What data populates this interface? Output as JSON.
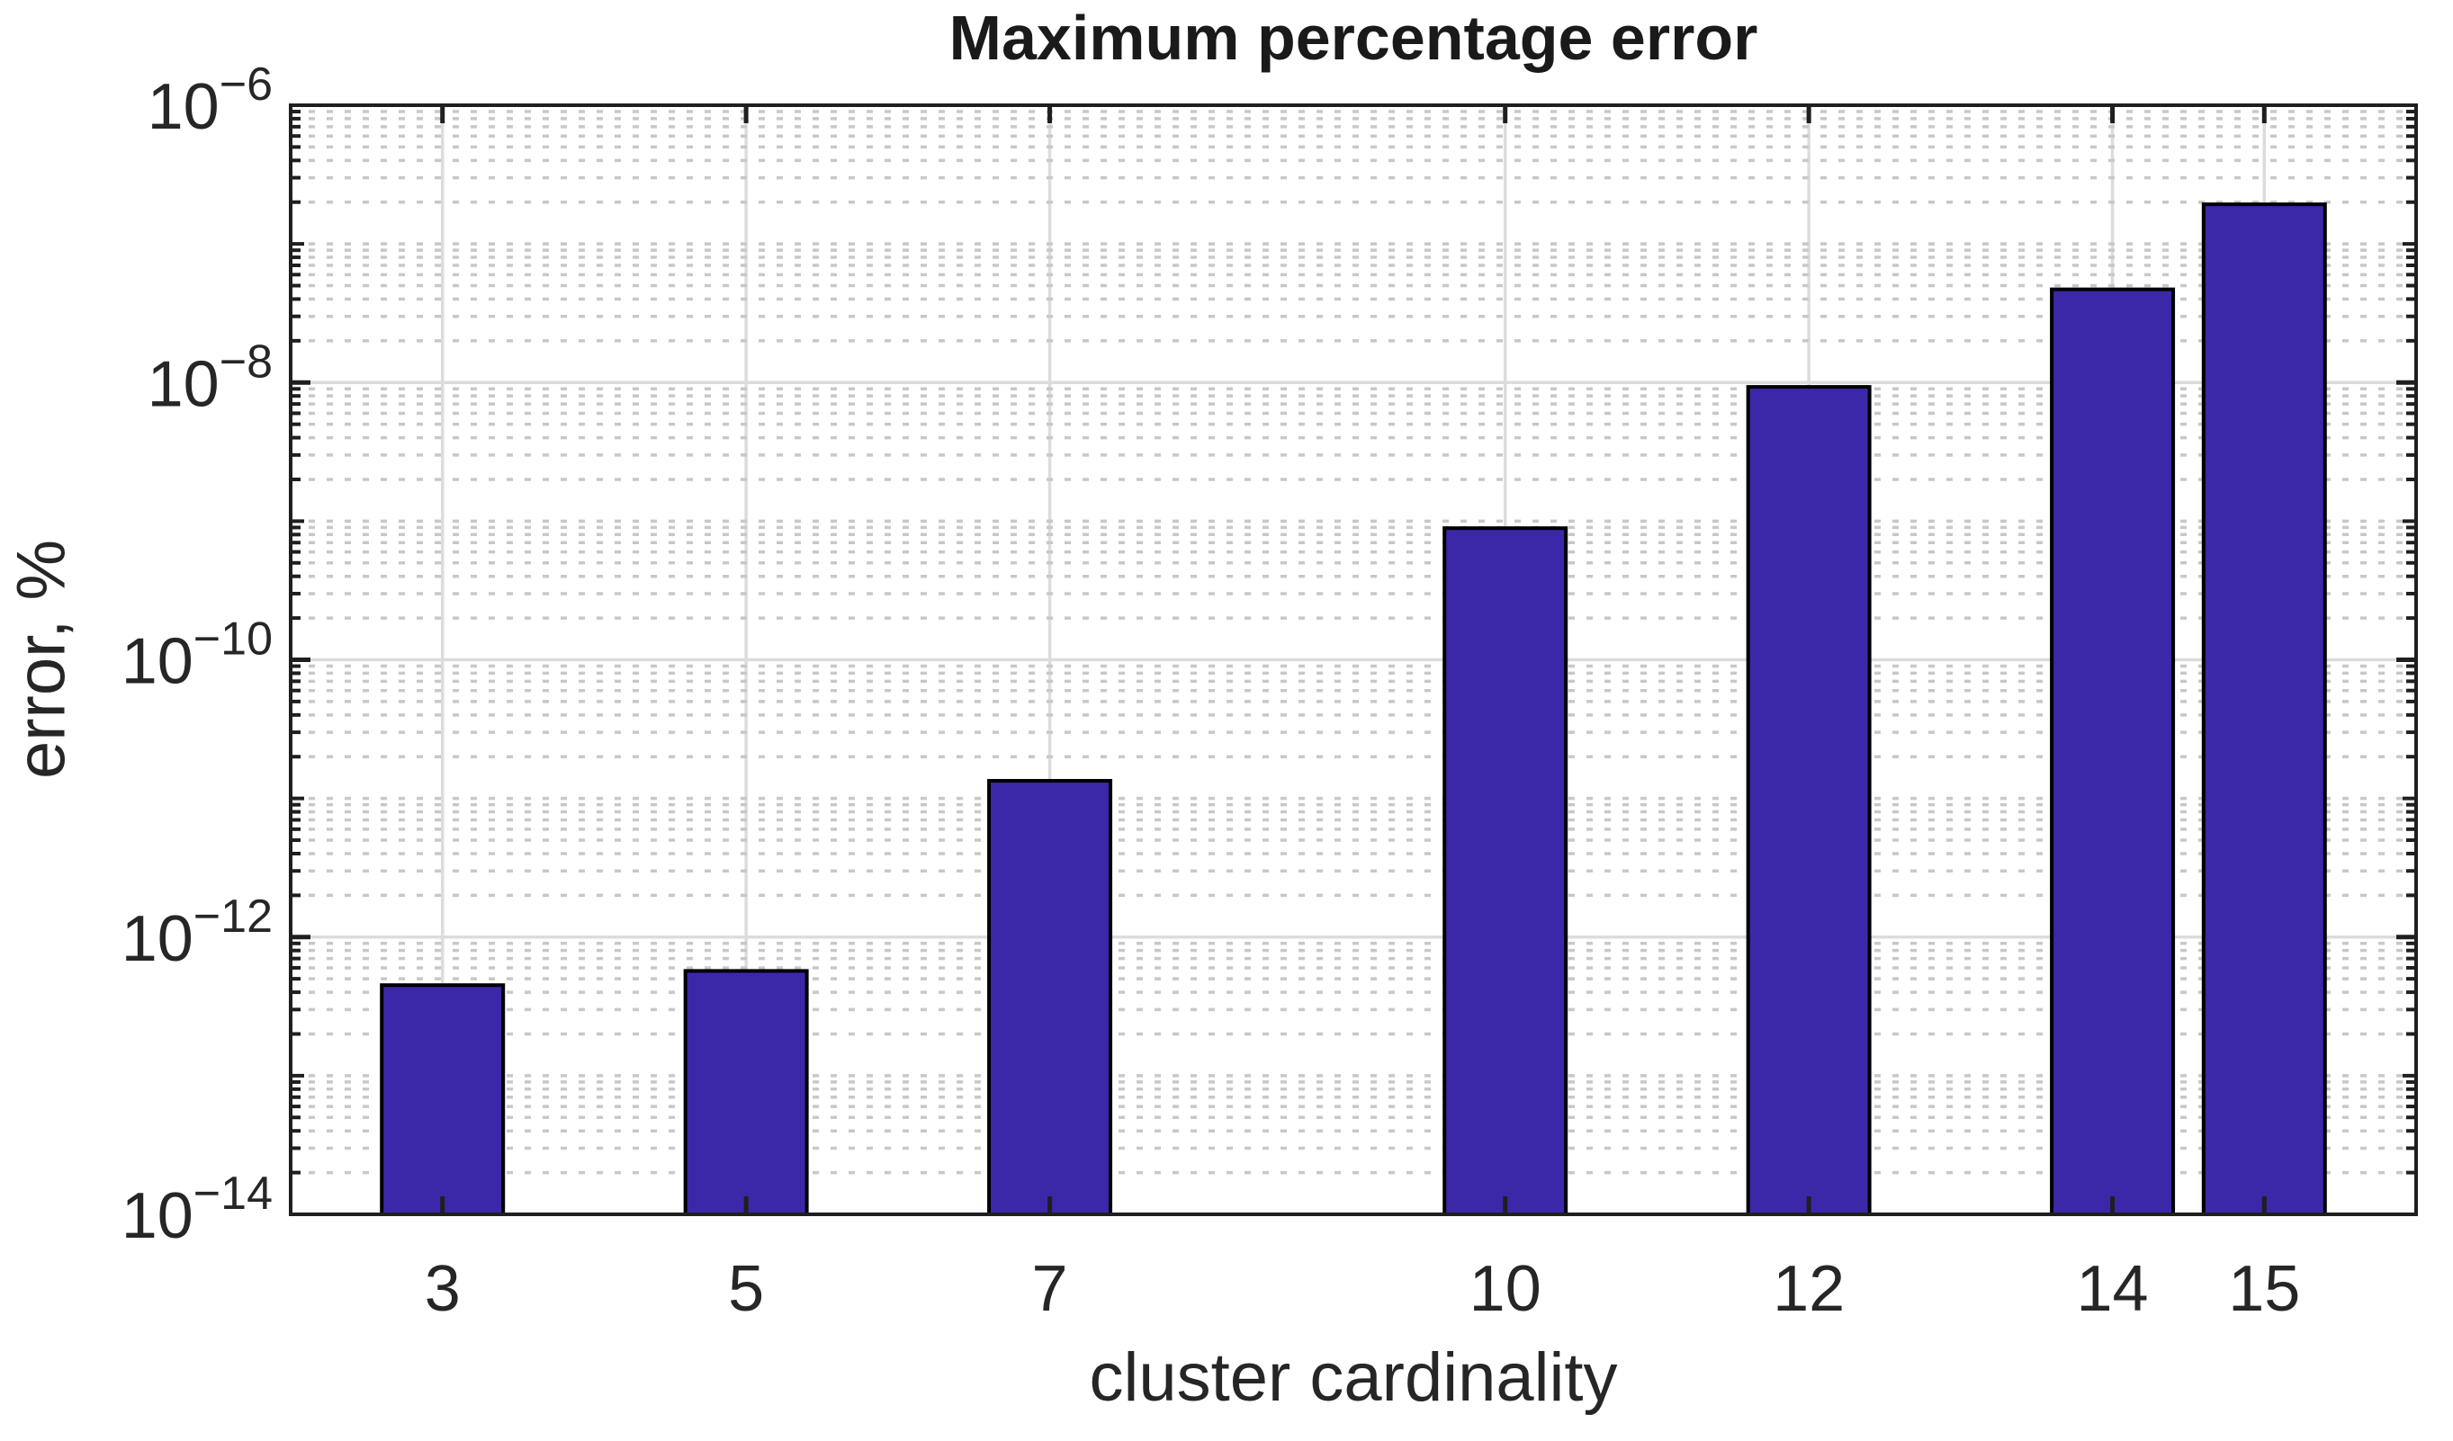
{
  "chart_data": {
    "type": "bar",
    "title": "Maximum percentage error",
    "xlabel": "cluster cardinality",
    "ylabel": "error, %",
    "categories": [
      3,
      5,
      7,
      10,
      12,
      14,
      15
    ],
    "values": [
      4.5e-13,
      5.7e-13,
      1.34e-11,
      8.9e-10,
      9.3e-09,
      4.7e-08,
      1.93e-07
    ],
    "x_tick_labels": [
      "3",
      "5",
      "7",
      "10",
      "12",
      "14",
      "15"
    ],
    "xlim": [
      2,
      16
    ],
    "ylim": [
      1e-14,
      1e-06
    ],
    "yscale": "log",
    "ytick_exponents": [
      -6,
      -8,
      -10,
      -12,
      -14
    ],
    "ytick_base": "10",
    "minus_sign": "−",
    "bar_width_units": 0.8,
    "grid": true,
    "minor_grid": true,
    "legend": null,
    "colors": {
      "bar_fill": "#3B28A8",
      "bar_edge": "#000000",
      "axis": "#1f1f1f",
      "text": "#262626",
      "major_grid": "#DCDCDC",
      "minor_grid": "#C8C8C8",
      "background": "#FFFFFF"
    }
  }
}
